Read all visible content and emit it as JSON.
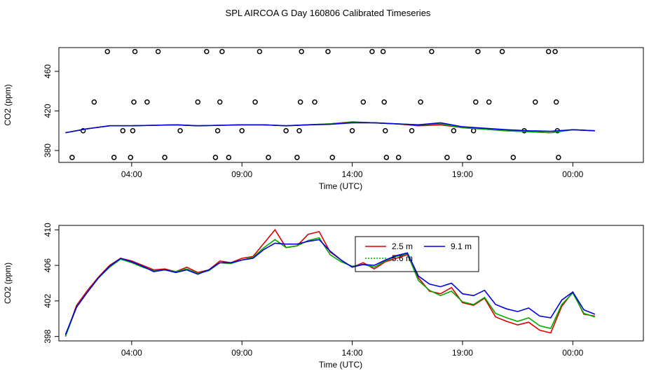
{
  "figure": {
    "title": "SPL AIRCOA G  Day 160806  Calibrated Timeseries"
  },
  "colors": {
    "series1": "#dd0000",
    "series2": "#00aa00",
    "series3": "#0000dd",
    "axis": "#000000"
  },
  "chart_data": [
    {
      "type": "scatter",
      "title": "",
      "xlabel": "Time (UTC)",
      "ylabel": "CO2 (ppm)",
      "xlim": [
        -0.3,
        26.2
      ],
      "ylim": [
        368,
        484
      ],
      "x_ticks": [
        {
          "value": 3,
          "label": "04:00"
        },
        {
          "value": 8,
          "label": "09:00"
        },
        {
          "value": 13,
          "label": "14:00"
        },
        {
          "value": 18,
          "label": "19:00"
        },
        {
          "value": 23,
          "label": "00:00"
        }
      ],
      "y_ticks": [
        {
          "value": 380,
          "label": "380"
        },
        {
          "value": 420,
          "label": "420"
        },
        {
          "value": 460,
          "label": "460"
        }
      ],
      "grid": false,
      "series": [
        {
          "style": "points",
          "points": [
            [
              0.3,
              373
            ],
            [
              0.8,
              400
            ],
            [
              1.3,
              429
            ],
            [
              1.9,
              480
            ],
            [
              2.2,
              373
            ],
            [
              2.6,
              400
            ],
            [
              2.95,
              373
            ],
            [
              3.05,
              400
            ],
            [
              3.1,
              429
            ],
            [
              3.15,
              480
            ],
            [
              3.7,
              429
            ],
            [
              4.2,
              480
            ],
            [
              4.5,
              373
            ],
            [
              5.2,
              400
            ],
            [
              6.0,
              429
            ],
            [
              6.4,
              480
            ],
            [
              6.8,
              373
            ],
            [
              6.9,
              400
            ],
            [
              7.0,
              429
            ],
            [
              7.1,
              480
            ],
            [
              7.4,
              373
            ],
            [
              8.0,
              400
            ],
            [
              8.6,
              429
            ],
            [
              8.8,
              480
            ],
            [
              9.2,
              373
            ],
            [
              10.0,
              400
            ],
            [
              10.5,
              373
            ],
            [
              10.6,
              400
            ],
            [
              10.65,
              429
            ],
            [
              10.7,
              480
            ],
            [
              11.3,
              429
            ],
            [
              11.9,
              480
            ],
            [
              12.1,
              373
            ],
            [
              13.0,
              400
            ],
            [
              13.5,
              429
            ],
            [
              13.9,
              480
            ],
            [
              14.4,
              480
            ],
            [
              14.45,
              429
            ],
            [
              14.5,
              400
            ],
            [
              14.55,
              373
            ],
            [
              15.1,
              373
            ],
            [
              15.7,
              400
            ],
            [
              16.1,
              429
            ],
            [
              16.6,
              480
            ],
            [
              17.3,
              373
            ],
            [
              17.6,
              400
            ],
            [
              18.3,
              373
            ],
            [
              18.5,
              400
            ],
            [
              18.6,
              429
            ],
            [
              18.7,
              480
            ],
            [
              19.2,
              429
            ],
            [
              19.8,
              480
            ],
            [
              20.3,
              373
            ],
            [
              20.8,
              400
            ],
            [
              21.3,
              429
            ],
            [
              21.9,
              480
            ],
            [
              22.2,
              480
            ],
            [
              22.25,
              429
            ],
            [
              22.3,
              400
            ],
            [
              22.35,
              373
            ]
          ]
        },
        {
          "name": "2.5 m",
          "style": "line",
          "color": "#dd0000",
          "x": [
            0,
            1,
            2,
            3,
            4,
            5,
            6,
            7,
            8,
            9,
            10,
            11,
            12,
            13,
            14,
            15,
            16,
            17,
            18,
            19,
            20,
            21,
            22,
            23,
            24
          ],
          "values": [
            398,
            402,
            405,
            405,
            405.5,
            406,
            405,
            405.5,
            406,
            406,
            405,
            406,
            407,
            409,
            408,
            407,
            405,
            406,
            403,
            401.5,
            400,
            399,
            398,
            401,
            400
          ]
        },
        {
          "name": "5.6 m",
          "style": "line",
          "color": "#00aa00",
          "x": [
            0,
            1,
            2,
            3,
            4,
            5,
            6,
            7,
            8,
            9,
            10,
            11,
            12,
            13,
            14,
            15,
            16,
            17,
            18,
            19,
            20,
            21,
            22,
            23,
            24
          ],
          "values": [
            398,
            402,
            405,
            405,
            405.5,
            406,
            405,
            405.5,
            406,
            406,
            405,
            406,
            407,
            408.5,
            408,
            407,
            406,
            407,
            403,
            401.5,
            400,
            399,
            398,
            401,
            400
          ]
        },
        {
          "name": "9.1 m",
          "style": "line",
          "color": "#0000dd",
          "x": [
            0,
            1,
            2,
            3,
            4,
            5,
            6,
            7,
            8,
            9,
            10,
            11,
            12,
            13,
            14,
            15,
            16,
            17,
            18,
            19,
            20,
            21,
            22,
            23,
            24
          ],
          "values": [
            398,
            402,
            405,
            405,
            405.5,
            406,
            405,
            405.5,
            406,
            406,
            405,
            406,
            406.5,
            408,
            408,
            407,
            406,
            408,
            404,
            402.5,
            401,
            400,
            399.5,
            401,
            400
          ]
        }
      ]
    },
    {
      "type": "line",
      "title": "",
      "xlabel": "Time (UTC)",
      "ylabel": "CO2 (ppm)",
      "xlim": [
        -0.3,
        26.2
      ],
      "ylim": [
        397.5,
        410.5
      ],
      "x_ticks": [
        {
          "value": 3,
          "label": "04:00"
        },
        {
          "value": 8,
          "label": "09:00"
        },
        {
          "value": 13,
          "label": "14:00"
        },
        {
          "value": 18,
          "label": "19:00"
        },
        {
          "value": 23,
          "label": "00:00"
        }
      ],
      "y_ticks": [
        {
          "value": 398,
          "label": "398"
        },
        {
          "value": 402,
          "label": "402"
        },
        {
          "value": 406,
          "label": "406"
        },
        {
          "value": 410,
          "label": "410"
        }
      ],
      "grid": false,
      "legend": {
        "position": "center-right",
        "entries": [
          "2.5 m",
          "5.6 m",
          "9.1 m"
        ]
      },
      "x": [
        0,
        0.5,
        1,
        1.5,
        2,
        2.5,
        3,
        3.5,
        4,
        4.5,
        5,
        5.5,
        6,
        6.5,
        7,
        7.5,
        8,
        8.5,
        9,
        9.5,
        10,
        10.5,
        11,
        11.5,
        12,
        12.5,
        13,
        13.5,
        14,
        14.5,
        15,
        15.5,
        16,
        16.5,
        17,
        17.5,
        18,
        18.5,
        19,
        19.5,
        20,
        20.5,
        21,
        21.5,
        22,
        22.5,
        23,
        23.5,
        24
      ],
      "series": [
        {
          "name": "2.5 m",
          "color": "#dd0000",
          "values": [
            398,
            401.5,
            403.2,
            404.7,
            406,
            406.8,
            406.5,
            406,
            405.5,
            405.6,
            405.3,
            405.8,
            405.2,
            405.5,
            406.5,
            406.3,
            406.8,
            407,
            408.5,
            410,
            408,
            408.2,
            409.5,
            409.8,
            407.5,
            406.6,
            405.8,
            406.3,
            405.6,
            406.4,
            406.8,
            407.2,
            404.6,
            403.1,
            402.8,
            403.5,
            401.8,
            401.5,
            402.3,
            400.2,
            399.7,
            399.3,
            399.6,
            398.7,
            398.4,
            401.4,
            403,
            400.5,
            400.3
          ]
        },
        {
          "name": "5.6 m",
          "color": "#00aa00",
          "values": [
            398,
            401.3,
            403,
            404.6,
            405.8,
            406.7,
            406.3,
            405.8,
            405.4,
            405.5,
            405.3,
            405.6,
            405.1,
            405.4,
            406.3,
            406.2,
            406.6,
            406.9,
            408,
            408.9,
            408,
            408.2,
            408.8,
            409.1,
            407.2,
            406.4,
            405.9,
            406.1,
            405.8,
            406.5,
            407,
            407.3,
            404.3,
            403.2,
            402.6,
            403.1,
            401.9,
            401.6,
            402.4,
            400.6,
            400.1,
            399.7,
            400.1,
            399.2,
            398.9,
            401.6,
            402.9,
            400.6,
            400.2
          ]
        },
        {
          "name": "9.1 m",
          "color": "#0000dd",
          "values": [
            398.2,
            401.3,
            403,
            404.6,
            405.9,
            406.8,
            406.4,
            405.9,
            405.3,
            405.5,
            405.2,
            405.5,
            405,
            405.5,
            406.3,
            406.3,
            406.6,
            406.8,
            407.8,
            408.5,
            408.4,
            408.4,
            408.7,
            408.9,
            407.6,
            406.6,
            405.8,
            406.1,
            406,
            406.6,
            407.1,
            407.4,
            404.8,
            403.9,
            403.6,
            404,
            402.8,
            402.6,
            403.2,
            401.6,
            401.1,
            400.8,
            401.2,
            400.3,
            400.1,
            402.1,
            403,
            401,
            400.5
          ]
        }
      ]
    }
  ]
}
